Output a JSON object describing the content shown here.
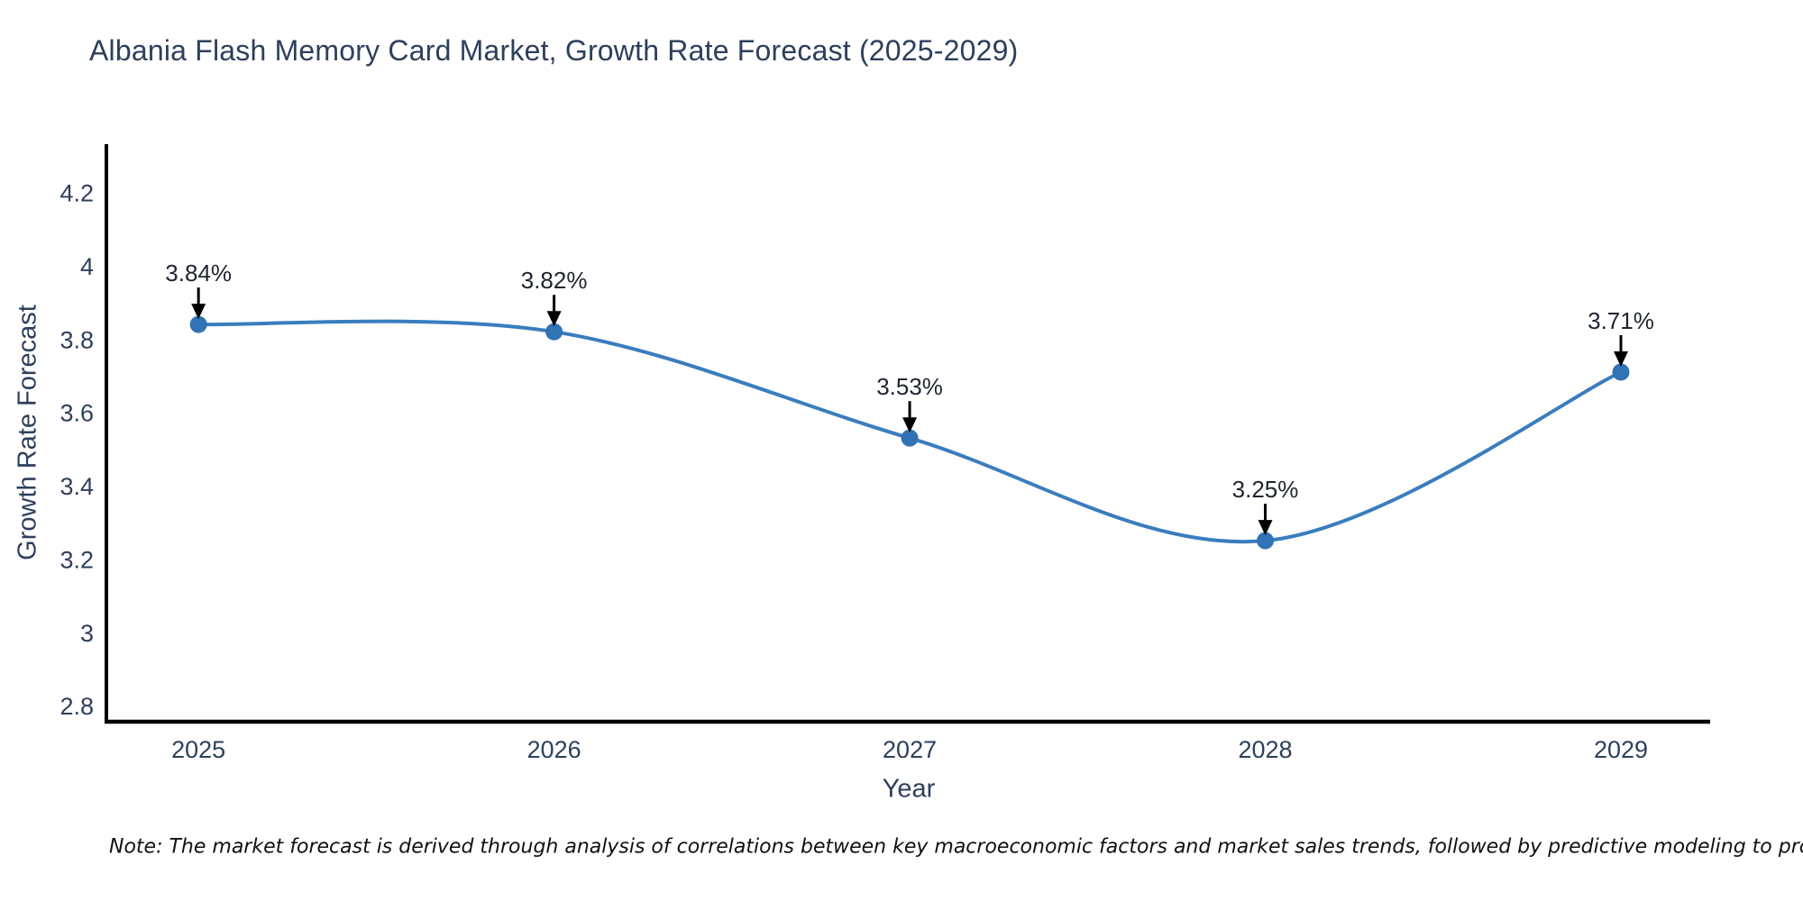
{
  "chart": {
    "title": "Albania Flash Memory Card Market, Growth Rate Forecast (2025-2029)",
    "xlabel": "Year",
    "ylabel": "Growth Rate Forecast"
  },
  "note": "Note: The market forecast is derived through analysis of correlations between key macroeconomic factors and market sales trends, followed by predictive modeling to project future sales",
  "chart_data": {
    "type": "line",
    "title": "Albania Flash Memory Card Market, Growth Rate Forecast (2025-2029)",
    "xlabel": "Year",
    "ylabel": "Growth Rate Forecast",
    "x": [
      2025,
      2026,
      2027,
      2028,
      2029
    ],
    "x_tick_labels": [
      "2025",
      "2026",
      "2027",
      "2028",
      "2029"
    ],
    "series": [
      {
        "name": "Growth Rate Forecast",
        "values": [
          3.84,
          3.82,
          3.53,
          3.25,
          3.71
        ]
      }
    ],
    "point_labels": [
      "3.84%",
      "3.82%",
      "3.53%",
      "3.25%",
      "3.71%"
    ],
    "xlim": [
      2024.741,
      2029.251
    ],
    "ylim": [
      2.756,
      4.332
    ],
    "yticks": [
      2.8,
      3.0,
      3.2,
      3.4,
      3.6,
      3.8,
      4.0,
      4.2
    ],
    "y_tick_labels": [
      "2.8",
      "3",
      "3.2",
      "3.4",
      "3.6",
      "3.8",
      "4",
      "4.2"
    ],
    "grid": false,
    "legend": "none",
    "smooth": true,
    "annotations": "arrow-down-to-point",
    "colors": {
      "line": "#3a7dbe",
      "marker": "#3173b4",
      "axis": "#000000",
      "tick_label": "#2e3f5c",
      "title": "#2e3f5c",
      "annotation_text": "#1f2430",
      "arrow": "#000000"
    }
  }
}
